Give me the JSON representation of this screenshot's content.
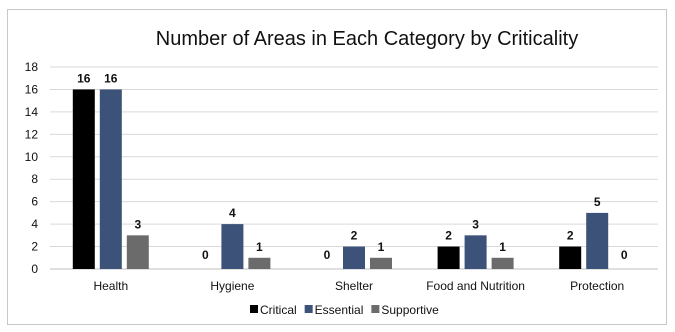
{
  "chart_data": {
    "type": "bar",
    "title": "Number of Areas in Each Category by Criticality",
    "xlabel": "",
    "ylabel": "",
    "categories": [
      "Health",
      "Hygiene",
      "Shelter",
      "Food and Nutrition",
      "Protection"
    ],
    "series": [
      {
        "name": "Critical",
        "color": "#000000",
        "values": [
          16,
          0,
          0,
          2,
          2
        ]
      },
      {
        "name": "Essential",
        "color": "#3d5278",
        "values": [
          16,
          4,
          2,
          3,
          5
        ]
      },
      {
        "name": "Supportive",
        "color": "#6b6b6b",
        "values": [
          3,
          1,
          1,
          1,
          0
        ]
      }
    ],
    "ylim": [
      0,
      18
    ],
    "yticks": [
      0,
      2,
      4,
      6,
      8,
      10,
      12,
      14,
      16,
      18
    ],
    "grid": true,
    "legend_position": "bottom"
  }
}
